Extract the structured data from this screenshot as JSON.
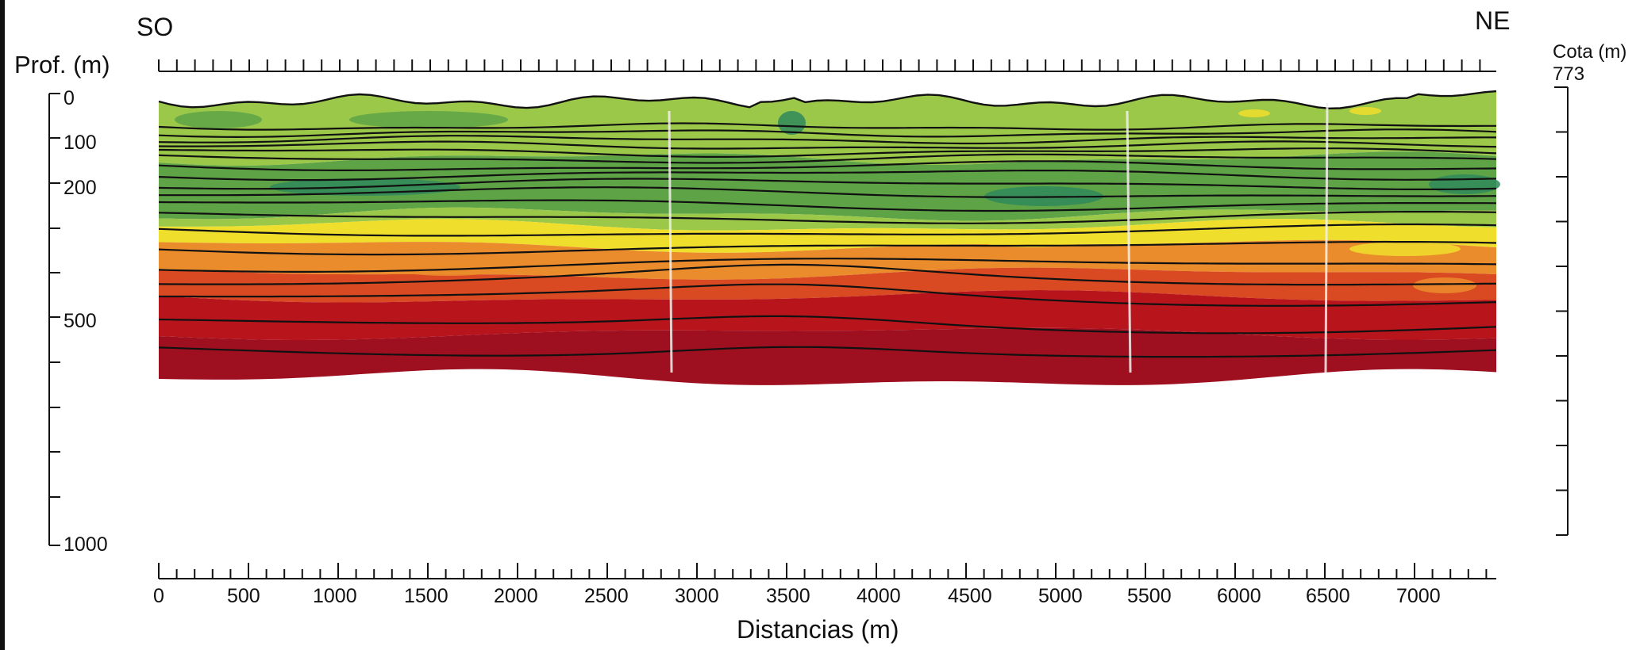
{
  "header": {
    "orientation_left": "SO",
    "orientation_right": "NE"
  },
  "left_axis": {
    "title": "Prof. (m)",
    "labels": [
      "0",
      "100",
      "200",
      "500",
      "1000"
    ]
  },
  "right_axis": {
    "title": "Cota (m)",
    "top_value": "773"
  },
  "bottom_axis": {
    "title": "Distancias (m)",
    "labels": [
      "0",
      "500",
      "1000",
      "1500",
      "2000",
      "2500",
      "3000",
      "3500",
      "4000",
      "4500",
      "5000",
      "5500",
      "6000",
      "6500",
      "7000"
    ]
  },
  "section": {
    "depth_range_m": [
      0,
      1000
    ],
    "distance_range_m": [
      0,
      7450
    ],
    "colors": {
      "light_green": "#9cc84a",
      "mid_green": "#5fa347",
      "teal_green": "#2f8a5a",
      "yellow": "#f0de2c",
      "orange": "#eb8c2c",
      "red_orange": "#d94a22",
      "red": "#b8141c",
      "deep_red": "#9e1020"
    }
  }
}
